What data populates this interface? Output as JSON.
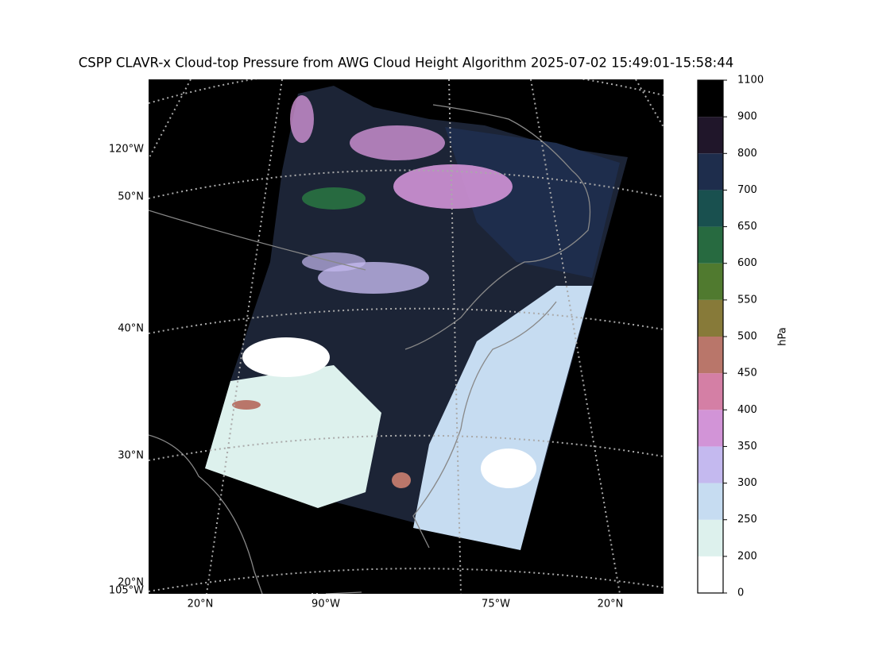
{
  "title": "CSPP CLAVR-x Cloud-top Pressure from AWG Cloud Height Algorithm 2025-07-02 15:49:01-15:58:44",
  "map": {
    "left_labels": [
      "120°W",
      "50°N",
      "40°N",
      "30°N",
      "20°N",
      "105°W"
    ],
    "bottom_labels": [
      "20°N",
      "90°W",
      "75°W",
      "20°N"
    ]
  },
  "colorbar": {
    "label": "hPa",
    "ticks": [
      0,
      200,
      250,
      300,
      350,
      400,
      450,
      500,
      550,
      600,
      650,
      700,
      800,
      900,
      1100
    ],
    "colors": [
      "#ffffff",
      "#ddf1ed",
      "#c6dcf1",
      "#c4b9ef",
      "#d294d7",
      "#d47fa5",
      "#b9766a",
      "#877a39",
      "#507a2f",
      "#276a40",
      "#19504f",
      "#1e2d4c",
      "#20162a",
      "#000000"
    ]
  }
}
